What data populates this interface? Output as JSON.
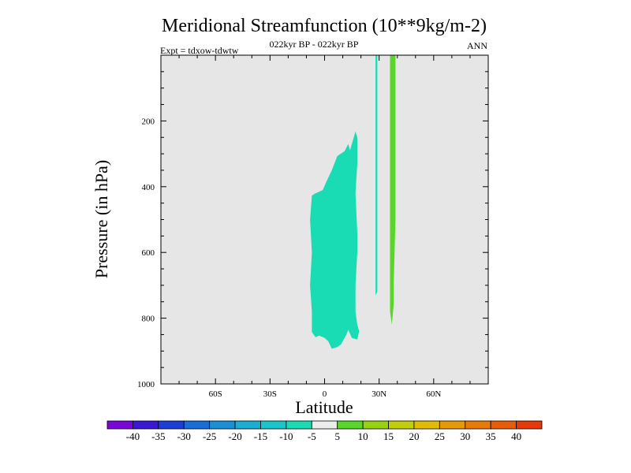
{
  "chart_data": {
    "type": "contour",
    "title": "Meridional Streamfunction (10**9kg/m-2)",
    "subtitle_left": "Expt = tdxow-tdwtw",
    "subtitle_center": "022kyr BP - 022kyr BP",
    "subtitle_right": "ANN",
    "xlabel": "Latitude",
    "ylabel": "Pressure (in hPa)",
    "xlim": [
      -90,
      90
    ],
    "ylim": [
      1000,
      0
    ],
    "x_ticks": [
      {
        "value": -60,
        "label": "60S"
      },
      {
        "value": -30,
        "label": "30S"
      },
      {
        "value": 0,
        "label": "0"
      },
      {
        "value": 30,
        "label": "30N"
      },
      {
        "value": 60,
        "label": "60N"
      }
    ],
    "y_ticks": [
      {
        "value": 200,
        "label": "200"
      },
      {
        "value": 400,
        "label": "400"
      },
      {
        "value": 600,
        "label": "600"
      },
      {
        "value": 800,
        "label": "800"
      },
      {
        "value": 1000,
        "label": "1000"
      }
    ],
    "background_color": "#e6e6e6",
    "regions": [
      {
        "name": "tropical-negative-cell",
        "level_range": [
          -10,
          -5
        ],
        "color": "#1adcb4",
        "outline": [
          [
            -7,
            427
          ],
          [
            -5,
            420
          ],
          [
            -4,
            418
          ],
          [
            -1,
            410
          ],
          [
            1,
            385
          ],
          [
            4,
            350
          ],
          [
            7,
            307
          ],
          [
            11,
            292
          ],
          [
            13,
            270
          ],
          [
            14,
            289
          ],
          [
            17,
            232
          ],
          [
            18,
            250
          ],
          [
            18,
            330
          ],
          [
            17,
            420
          ],
          [
            18,
            540
          ],
          [
            18,
            600
          ],
          [
            17,
            700
          ],
          [
            17,
            780
          ],
          [
            18,
            820
          ],
          [
            19,
            840
          ],
          [
            18,
            865
          ],
          [
            15,
            860
          ],
          [
            13,
            835
          ],
          [
            12,
            850
          ],
          [
            9,
            880
          ],
          [
            7,
            888
          ],
          [
            4,
            893
          ],
          [
            2,
            870
          ],
          [
            0,
            860
          ],
          [
            -3,
            853
          ],
          [
            -5,
            858
          ],
          [
            -7,
            842
          ],
          [
            -7,
            780
          ],
          [
            -8,
            700
          ],
          [
            -7,
            600
          ],
          [
            -8,
            500
          ]
        ]
      },
      {
        "name": "subtropical-negative-band",
        "level_range": [
          -10,
          -5
        ],
        "color": "#1adcb4",
        "outline": [
          [
            28,
            0
          ],
          [
            29,
            0
          ],
          [
            29,
            150
          ],
          [
            29,
            400
          ],
          [
            29,
            600
          ],
          [
            29,
            720
          ],
          [
            28,
            730
          ],
          [
            28,
            600
          ],
          [
            28,
            300
          ],
          [
            28,
            100
          ]
        ]
      },
      {
        "name": "subtropical-positive-band",
        "level_range": [
          5,
          10
        ],
        "color": "#5ad62a",
        "outline": [
          [
            36,
            0
          ],
          [
            39,
            0
          ],
          [
            39,
            150
          ],
          [
            39,
            500
          ],
          [
            38,
            700
          ],
          [
            38,
            760
          ],
          [
            37,
            820
          ],
          [
            36,
            780
          ],
          [
            36,
            600
          ],
          [
            36,
            300
          ],
          [
            36,
            100
          ]
        ]
      }
    ],
    "colorbar": {
      "labels": [
        "-40",
        "-35",
        "-30",
        "-25",
        "-20",
        "-15",
        "-10",
        "-5",
        "5",
        "10",
        "15",
        "20",
        "25",
        "30",
        "35",
        "40"
      ],
      "colors": [
        "#7a06d8",
        "#3b18d4",
        "#1b3fd6",
        "#1a6cd8",
        "#1a8fd6",
        "#1aaed2",
        "#1ac6cc",
        "#1adcb4",
        "#ececec",
        "#5ad62a",
        "#96d20e",
        "#c2ce0a",
        "#e2bb06",
        "#e69a08",
        "#e87a08",
        "#e85c08",
        "#e63808"
      ]
    }
  }
}
